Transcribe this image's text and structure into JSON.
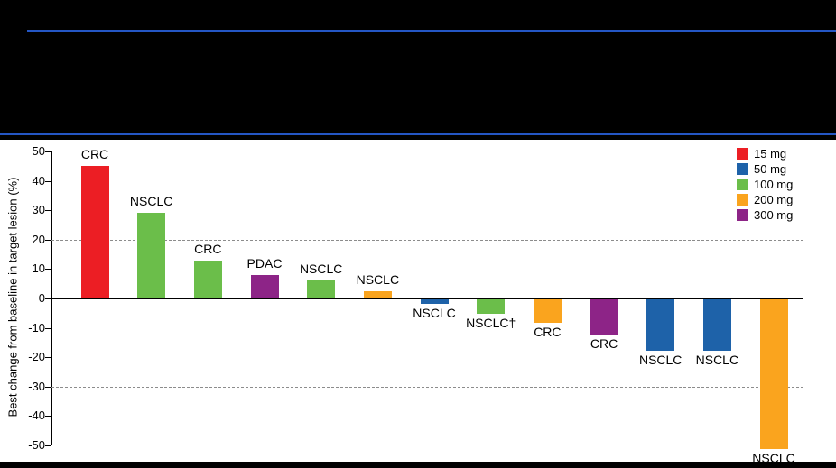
{
  "chart_data": {
    "type": "bar",
    "ylabel": "Best change from baseline in target lesion (%)",
    "ylim": [
      -50,
      50
    ],
    "yticks": [
      50,
      40,
      30,
      20,
      10,
      0,
      -10,
      -20,
      -30,
      -40,
      -50
    ],
    "reference_lines": [
      20,
      -30
    ],
    "grid": "dashed thresholds only",
    "legend_position": "top-right",
    "accent_color": "#2456C4",
    "colors": {
      "15 mg": "#EC1E24",
      "50 mg": "#1E62A9",
      "100 mg": "#6BBE4A",
      "200 mg": "#FAA41E",
      "300 mg": "#8D2487"
    },
    "legend": [
      {
        "label": "15 mg",
        "color": "#EC1E24"
      },
      {
        "label": "50 mg",
        "color": "#1E62A9"
      },
      {
        "label": "100 mg",
        "color": "#6BBE4A"
      },
      {
        "label": "200 mg",
        "color": "#FAA41E"
      },
      {
        "label": "300 mg",
        "color": "#8D2487"
      }
    ],
    "bars": [
      {
        "label": "CRC",
        "dose": "15 mg",
        "value": 45
      },
      {
        "label": "NSCLC",
        "dose": "100 mg",
        "value": 29
      },
      {
        "label": "CRC",
        "dose": "100 mg",
        "value": 13
      },
      {
        "label": "PDAC",
        "dose": "300 mg",
        "value": 8
      },
      {
        "label": "NSCLC",
        "dose": "100 mg",
        "value": 6
      },
      {
        "label": "NSCLC",
        "dose": "200 mg",
        "value": 2.5
      },
      {
        "label": "NSCLC",
        "dose": "50 mg",
        "value": -1.5
      },
      {
        "label": "NSCLC†",
        "dose": "100 mg",
        "value": -5
      },
      {
        "label": "CRC",
        "dose": "200 mg",
        "value": -8
      },
      {
        "label": "CRC",
        "dose": "300 mg",
        "value": -12
      },
      {
        "label": "NSCLC",
        "dose": "50 mg",
        "value": -17.5
      },
      {
        "label": "NSCLC",
        "dose": "50 mg",
        "value": -17.5
      },
      {
        "label": "NSCLC",
        "dose": "200 mg",
        "value": -51
      }
    ]
  }
}
